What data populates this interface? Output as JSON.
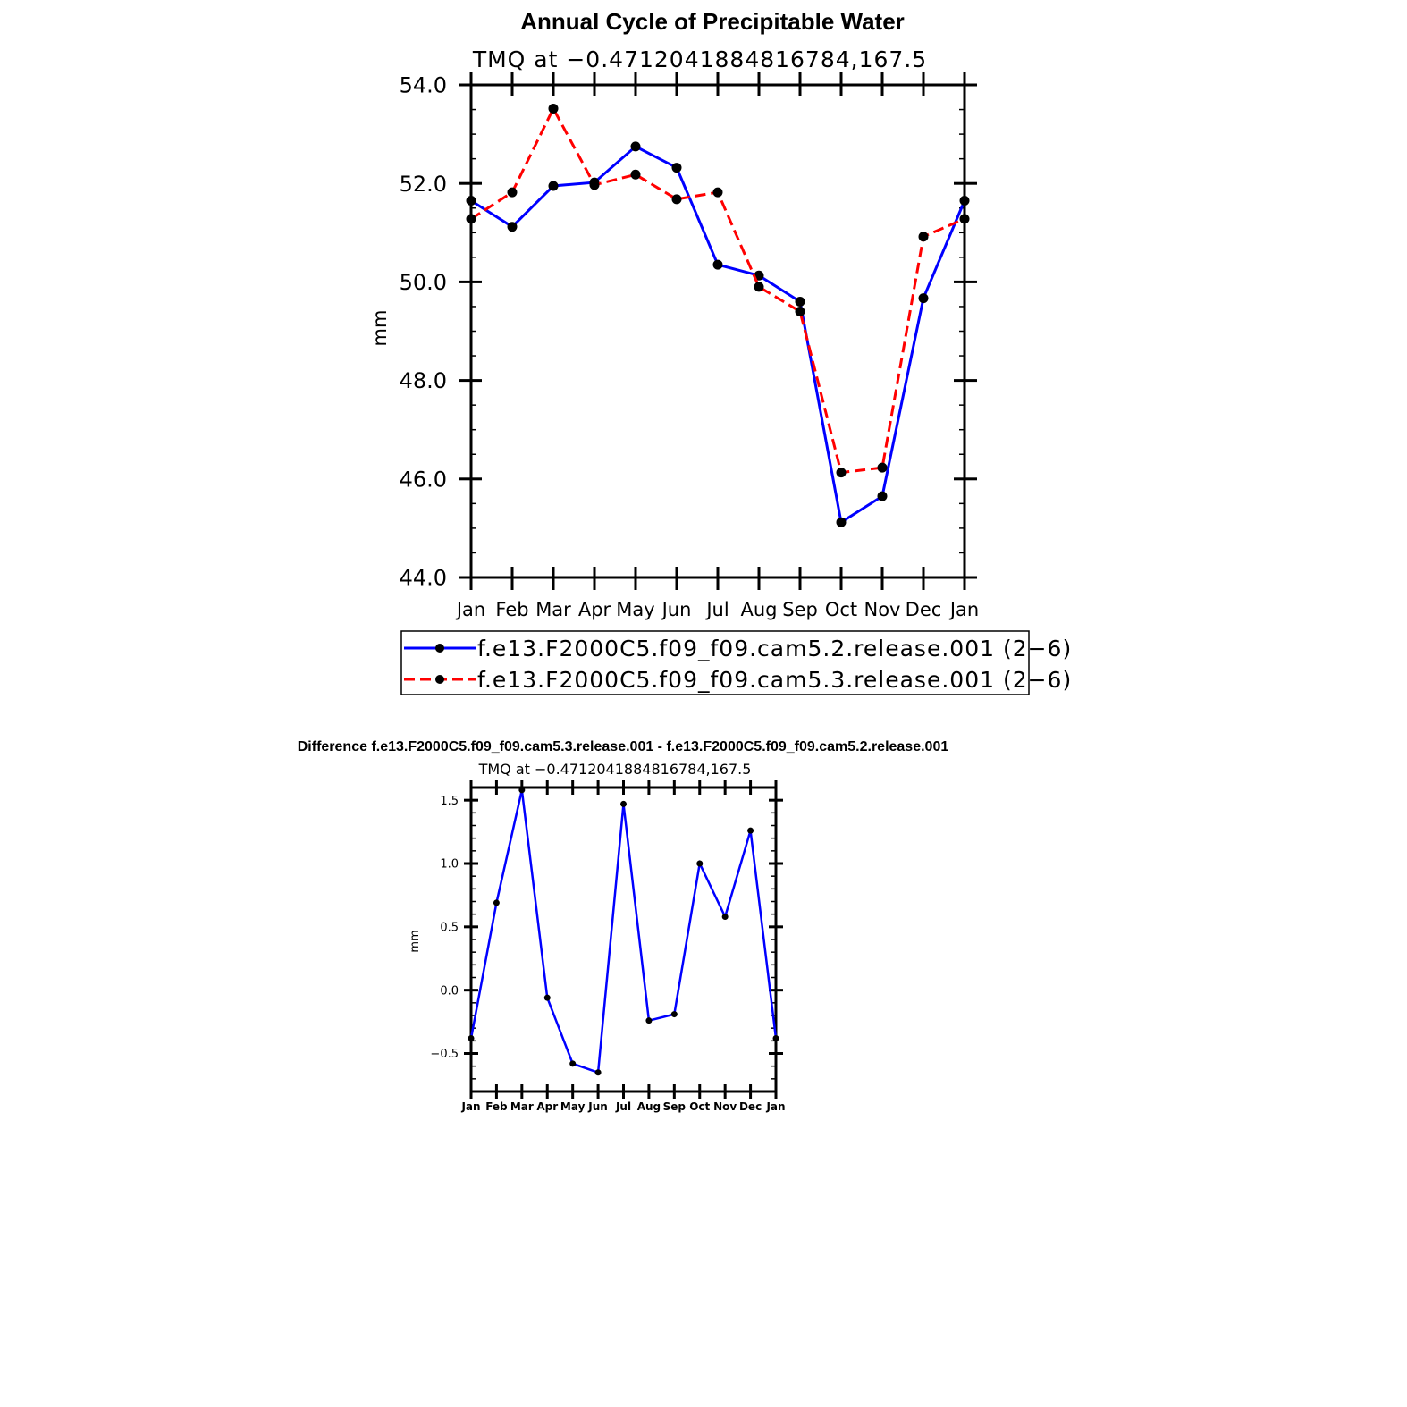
{
  "chart_data": [
    {
      "type": "line",
      "title": "Annual Cycle of Precipitable Water",
      "subtitle": "TMQ at −0.4712041884816784,167.5",
      "xlabel": "",
      "ylabel": "mm",
      "categories": [
        "Jan",
        "Feb",
        "Mar",
        "Apr",
        "May",
        "Jun",
        "Jul",
        "Aug",
        "Sep",
        "Oct",
        "Nov",
        "Dec",
        "Jan"
      ],
      "ylim": [
        44.0,
        54.0
      ],
      "yticks": [
        "44.0",
        "46.0",
        "48.0",
        "50.0",
        "52.0",
        "54.0"
      ],
      "legend_position": "bottom",
      "series": [
        {
          "name": "f.e13.F2000C5.f09_f09.cam5.2.release.001 (2−6)",
          "color": "#0000ff",
          "dash": "solid",
          "values": [
            51.65,
            51.12,
            51.95,
            52.02,
            52.75,
            52.32,
            50.35,
            50.13,
            49.6,
            45.12,
            45.65,
            49.67,
            51.65
          ]
        },
        {
          "name": "f.e13.F2000C5.f09_f09.cam5.3.release.001 (2−6)",
          "color": "#ff0000",
          "dash": "dashed",
          "values": [
            51.28,
            51.82,
            53.52,
            51.97,
            52.18,
            51.68,
            51.82,
            49.9,
            49.4,
            46.13,
            46.23,
            50.92,
            51.28
          ]
        }
      ]
    },
    {
      "type": "line",
      "title": "Difference f.e13.F2000C5.f09_f09.cam5.3.release.001 - f.e13.F2000C5.f09_f09.cam5.2.release.001",
      "subtitle": "TMQ at −0.4712041884816784,167.5",
      "xlabel": "",
      "ylabel": "mm",
      "categories": [
        "Jan",
        "Feb",
        "Mar",
        "Apr",
        "May",
        "Jun",
        "Jul",
        "Aug",
        "Sep",
        "Oct",
        "Nov",
        "Dec",
        "Jan"
      ],
      "ylim": [
        -0.8,
        1.6
      ],
      "yticks": [
        "−0.5",
        "0.0",
        "0.5",
        "1.0",
        "1.5"
      ],
      "series": [
        {
          "color": "#0000ff",
          "dash": "solid",
          "values": [
            -0.38,
            0.69,
            1.58,
            -0.06,
            -0.58,
            -0.65,
            1.47,
            -0.24,
            -0.19,
            1.0,
            0.58,
            1.26,
            -0.38
          ]
        }
      ]
    }
  ]
}
